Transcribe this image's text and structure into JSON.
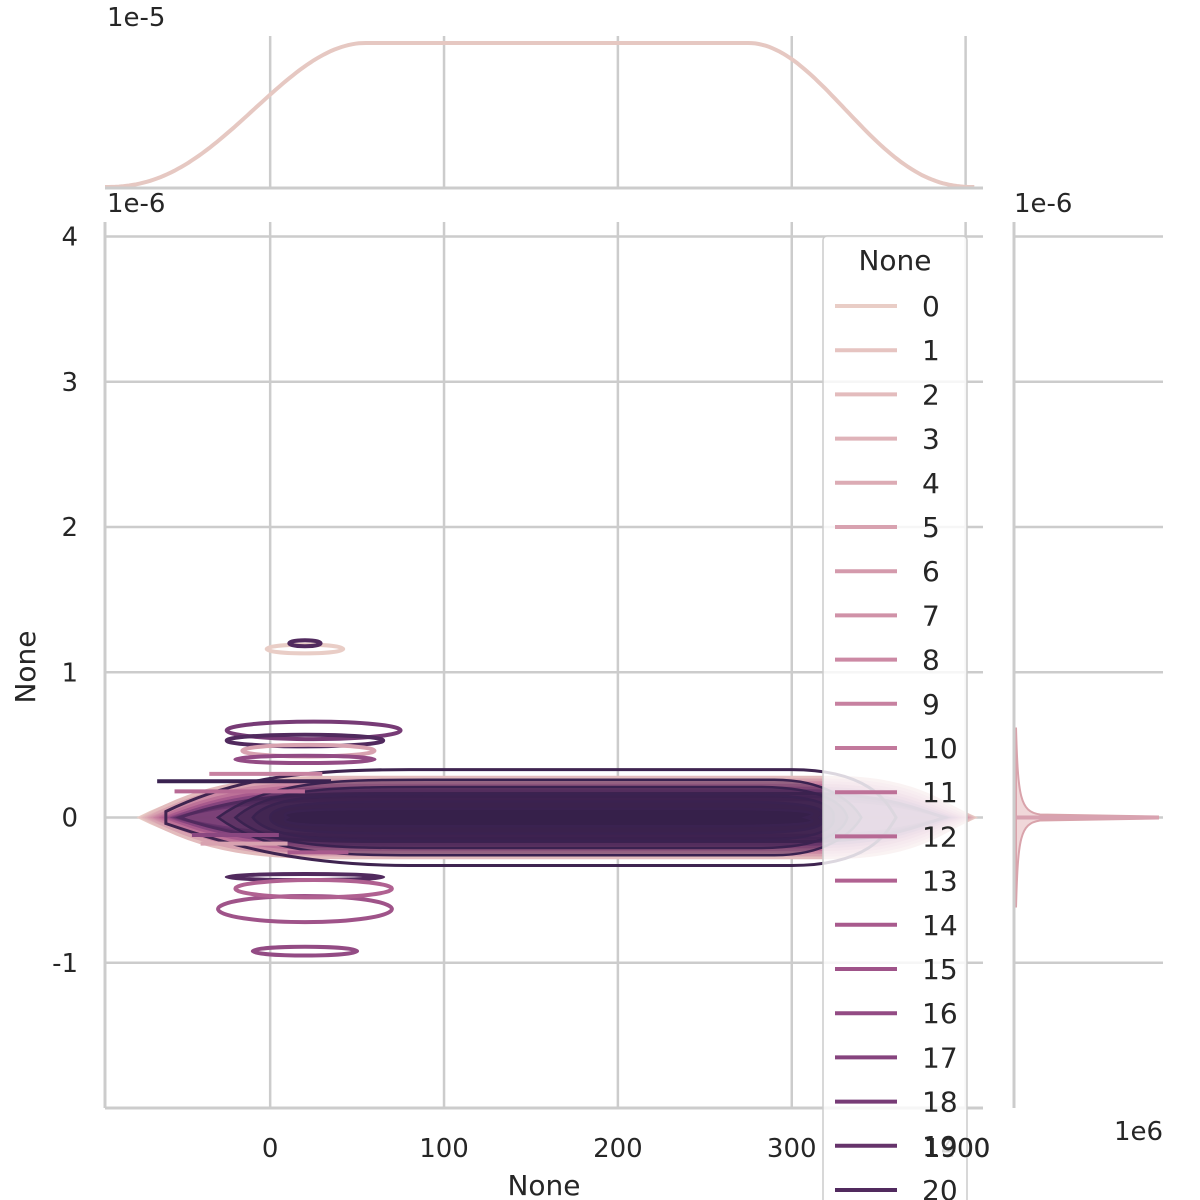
{
  "chart_data": {
    "type": "joint-kde",
    "xlabel": "None",
    "ylabel": "None",
    "x_ticks": [
      0,
      100,
      200,
      300,
      400
    ],
    "x_tick_labels": [
      "0",
      "100",
      "200",
      "300",
      "400"
    ],
    "x_range": [
      -95,
      410
    ],
    "y_ticks": [
      -1,
      0,
      1,
      2,
      3,
      4
    ],
    "y_tick_labels": [
      "-1",
      "0",
      "1",
      "2",
      "3",
      "4"
    ],
    "y_range": [
      -2.0,
      4.1
    ],
    "y_offset_label": "1e-6",
    "top_marginal_offset_label": "1e-5",
    "right_marginal_offset_label": "1e-6",
    "right_marginal_x_offset_label": "1e6",
    "extra_x_tick_label": "1900",
    "legend": {
      "title": "None",
      "placement": "right",
      "entries": [
        "0",
        "1",
        "2",
        "3",
        "4",
        "5",
        "6",
        "7",
        "8",
        "9",
        "10",
        "11",
        "12",
        "13",
        "14",
        "15",
        "16",
        "17",
        "18",
        "19",
        "20"
      ],
      "colors": [
        "#e9cdc6",
        "#e6c4c1",
        "#e3bcbd",
        "#dfb3b9",
        "#dcabb4",
        "#d8a2b0",
        "#d49aac",
        "#d092a8",
        "#cc89a4",
        "#c781a0",
        "#c2799c",
        "#bd7198",
        "#b76994",
        "#b06191",
        "#a85a8d",
        "#9f5389",
        "#934b84",
        "#86447e",
        "#773b76",
        "#66336b",
        "#512a5e"
      ]
    },
    "density_series": [
      {
        "name": "0",
        "x_center": 20,
        "x_halfwidth": 22,
        "y_center": 1.16,
        "y_halfwidth": 0.03
      },
      {
        "name": "20",
        "x_center": 20,
        "x_halfwidth": 9,
        "y_center": 1.2,
        "y_halfwidth": 0.015
      },
      {
        "name": "18",
        "x_center": 25,
        "x_halfwidth": 50,
        "y_center": 0.6,
        "y_halfwidth": 0.06
      },
      {
        "name": "20",
        "x_center": 20,
        "x_halfwidth": 45,
        "y_center": 0.53,
        "y_halfwidth": 0.04
      },
      {
        "name": "5",
        "x_center": 22,
        "x_halfwidth": 38,
        "y_center": 0.46,
        "y_halfwidth": 0.04
      },
      {
        "name": "16",
        "x_center": 20,
        "x_halfwidth": 40,
        "y_center": 0.4,
        "y_halfwidth": 0.025
      },
      {
        "name": "20",
        "x_center": 20,
        "x_halfwidth": 45,
        "y_center": -0.41,
        "y_halfwidth": 0.02
      },
      {
        "name": "15",
        "x_center": 20,
        "x_halfwidth": 50,
        "y_center": -0.63,
        "y_halfwidth": 0.09
      },
      {
        "name": "13",
        "x_center": 25,
        "x_halfwidth": 45,
        "y_center": -0.49,
        "y_halfwidth": 0.06
      },
      {
        "name": "16",
        "x_center": 20,
        "x_halfwidth": 30,
        "y_center": -0.92,
        "y_halfwidth": 0.03
      }
    ],
    "top_marginal": {
      "x_start": -95,
      "x_end": 405,
      "plateau_start": 55,
      "plateau_end": 275
    },
    "right_marginal": {
      "peak_y": 0
    }
  }
}
